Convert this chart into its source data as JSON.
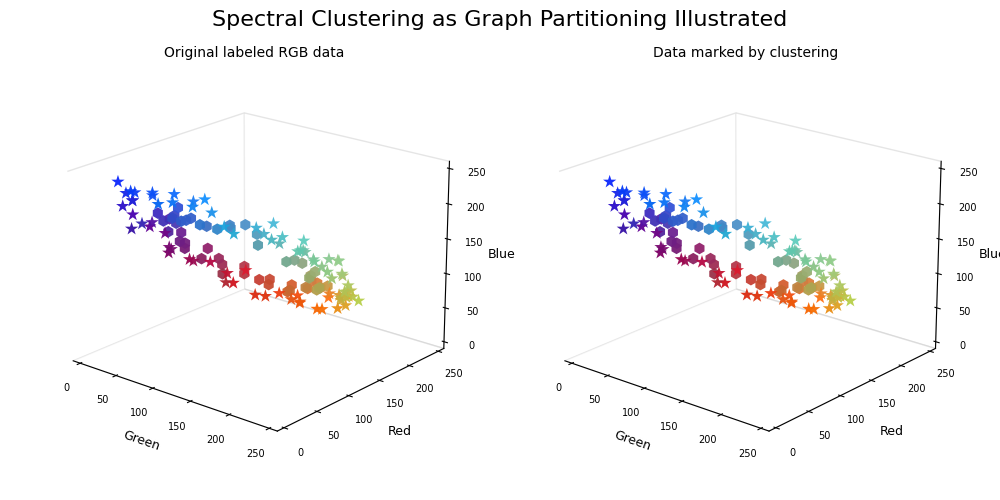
{
  "title": "Spectral Clustering as Graph Partitioning Illustrated",
  "subtitle_left": "Original labeled RGB data",
  "subtitle_right": "Data marked by clustering",
  "xlabel": "Green",
  "ylabel": "Red",
  "zlabel": "Blue",
  "axis_lim": [
    -10,
    260
  ],
  "axis_ticks": [
    0,
    50,
    100,
    150,
    200,
    250
  ],
  "seed": 42,
  "elev": 20,
  "azim": -50,
  "title_fontsize": 16,
  "subtitle_fontsize": 10,
  "tick_fontsize": 7,
  "label_fontsize": 9
}
